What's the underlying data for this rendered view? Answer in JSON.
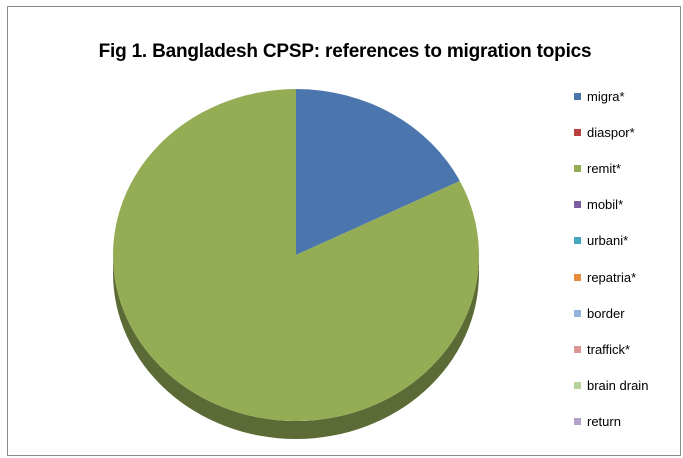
{
  "chart_data": {
    "type": "pie",
    "title": "Fig 1. Bangladesh CPSP: references to migration topics",
    "series": [
      {
        "label": "migra*",
        "value": 3,
        "color": "#4a76ad"
      },
      {
        "label": "diaspor*",
        "value": 0,
        "color": "#b9413e"
      },
      {
        "label": "remit*",
        "value": 14,
        "color": "#94ad55"
      },
      {
        "label": "mobil*",
        "value": 0,
        "color": "#7b5ea1"
      },
      {
        "label": "urbani*",
        "value": 0,
        "color": "#45a6c0"
      },
      {
        "label": "repatria*",
        "value": 0,
        "color": "#e88c3c"
      },
      {
        "label": "border",
        "value": 0,
        "color": "#95b2dc"
      },
      {
        "label": "traffick*",
        "value": 0,
        "color": "#d99694"
      },
      {
        "label": "brain drain",
        "value": 0,
        "color": "#b8d39a"
      },
      {
        "label": "return",
        "value": 0,
        "color": "#b3a2c7"
      }
    ],
    "legend_position": "right",
    "style": "3d"
  }
}
